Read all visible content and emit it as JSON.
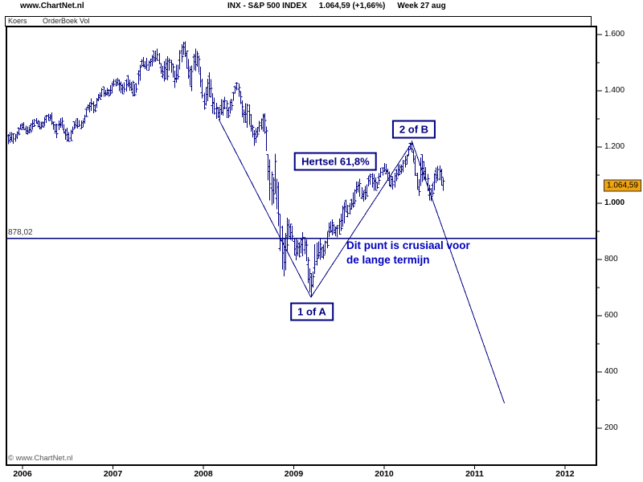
{
  "header": {
    "site": "www.ChartNet.nl",
    "symbol_title": "INX - S&P 500 INDEX",
    "quote": "1.064,59 (+1,66%)",
    "period": "Week  27 aug"
  },
  "toolbar": {
    "tabs": [
      {
        "label": "Koers"
      },
      {
        "label": "OrderBoek Vol"
      }
    ]
  },
  "watermark": "© www.ChartNet.nl",
  "colors": {
    "navy": "#000080",
    "note_blue": "#0000C0",
    "badge_bg": "#F2A40E",
    "badge_border": "#333333",
    "frame": "#000000"
  },
  "chart_data": {
    "type": "bar",
    "subtype": "weekly-hlc-price-bars",
    "title": "INX - S&P 500 INDEX",
    "interval": "Week",
    "xlabel": "",
    "ylabel": "",
    "grid": false,
    "legend": "none",
    "xlim": [
      2005.822,
      2012.347
    ],
    "ylim": [
      69,
      1629
    ],
    "x_ticks": [
      2006,
      2007,
      2008,
      2009,
      2010,
      2011,
      2012
    ],
    "y_ticks_major": [
      200,
      400,
      600,
      800,
      1000,
      1200,
      1400,
      1600
    ],
    "y_ticks_minor": [
      300,
      500,
      700,
      900,
      1100,
      1300,
      1500
    ],
    "bars_start": 2005.84,
    "bars_end": 2010.655,
    "last": {
      "price": 1064.59,
      "price_label": "1.064,59",
      "change_pct": "+1,66%",
      "date_label": "27 aug"
    },
    "hline": {
      "price": 878.02,
      "label": "878,02"
    },
    "monthly_envelope": [
      [
        2005,
        10,
        1168,
        1205
      ],
      [
        2005,
        11,
        1200,
        1268
      ],
      [
        2005,
        12,
        1240,
        1275
      ],
      [
        2006,
        1,
        1248,
        1295
      ],
      [
        2006,
        2,
        1255,
        1297
      ],
      [
        2006,
        3,
        1270,
        1310
      ],
      [
        2006,
        4,
        1280,
        1318
      ],
      [
        2006,
        5,
        1238,
        1326
      ],
      [
        2006,
        6,
        1222,
        1290
      ],
      [
        2006,
        7,
        1225,
        1280
      ],
      [
        2006,
        8,
        1262,
        1305
      ],
      [
        2006,
        9,
        1290,
        1340
      ],
      [
        2006,
        10,
        1327,
        1390
      ],
      [
        2006,
        11,
        1360,
        1407
      ],
      [
        2006,
        12,
        1385,
        1432
      ],
      [
        2007,
        1,
        1403,
        1442
      ],
      [
        2007,
        2,
        1385,
        1461
      ],
      [
        2007,
        3,
        1364,
        1438
      ],
      [
        2007,
        4,
        1424,
        1498
      ],
      [
        2007,
        5,
        1476,
        1532
      ],
      [
        2007,
        6,
        1484,
        1540
      ],
      [
        2007,
        7,
        1454,
        1556
      ],
      [
        2007,
        8,
        1378,
        1504
      ],
      [
        2007,
        9,
        1440,
        1538
      ],
      [
        2007,
        10,
        1489,
        1576
      ],
      [
        2007,
        11,
        1406,
        1552
      ],
      [
        2007,
        12,
        1436,
        1524
      ],
      [
        2008,
        1,
        1272,
        1472
      ],
      [
        2008,
        2,
        1316,
        1396
      ],
      [
        2008,
        3,
        1257,
        1360
      ],
      [
        2008,
        4,
        1324,
        1400
      ],
      [
        2008,
        5,
        1374,
        1432
      ],
      [
        2008,
        6,
        1272,
        1408
      ],
      [
        2008,
        7,
        1200,
        1292
      ],
      [
        2008,
        8,
        1247,
        1313
      ],
      [
        2008,
        9,
        1102,
        1306
      ],
      [
        2008,
        10,
        840,
        1168
      ],
      [
        2008,
        11,
        741,
        1006
      ],
      [
        2008,
        12,
        816,
        918
      ],
      [
        2009,
        1,
        804,
        944
      ],
      [
        2009,
        2,
        735,
        876
      ],
      [
        2009,
        3,
        666,
        832
      ],
      [
        2009,
        4,
        780,
        882
      ],
      [
        2009,
        5,
        850,
        930
      ],
      [
        2009,
        6,
        888,
        956
      ],
      [
        2009,
        7,
        872,
        996
      ],
      [
        2009,
        8,
        972,
        1040
      ],
      [
        2009,
        9,
        992,
        1080
      ],
      [
        2009,
        10,
        1020,
        1101
      ],
      [
        2009,
        11,
        1026,
        1113
      ],
      [
        2009,
        12,
        1082,
        1130
      ],
      [
        2010,
        1,
        1072,
        1150
      ],
      [
        2010,
        2,
        1044,
        1112
      ],
      [
        2010,
        3,
        1116,
        1180
      ],
      [
        2010,
        4,
        1170,
        1220
      ],
      [
        2010,
        5,
        1040,
        1206
      ],
      [
        2010,
        6,
        1010,
        1131
      ],
      [
        2010,
        7,
        1010,
        1121
      ],
      [
        2010,
        8,
        1040,
        1129
      ]
    ],
    "key_points": [
      {
        "t": 2007.79,
        "price": 1576,
        "kind": "high"
      },
      {
        "t": 2008.88,
        "price": 741,
        "kind": "low"
      },
      {
        "t": 2009.19,
        "price": 666,
        "kind": "low"
      },
      {
        "t": 2010.31,
        "price": 1217,
        "kind": "high"
      }
    ],
    "trendlines": [
      {
        "name": "decline-into-1-of-A",
        "from": [
          2008.169,
          1300
        ],
        "to": [
          2009.19,
          666
        ]
      },
      {
        "name": "rally-to-2-of-B",
        "from": [
          2009.19,
          666
        ],
        "to": [
          2010.31,
          1217
        ]
      },
      {
        "name": "projected-decline",
        "from": [
          2010.31,
          1217
        ],
        "to": [
          2011.33,
          289
        ]
      }
    ],
    "annotations": {
      "hertsel": {
        "text": "Hertsel 61,8%",
        "t": 2009.462,
        "price": 1150
      },
      "wave2": {
        "text": "2 of B",
        "t": 2010.329,
        "price": 1264
      },
      "wave1": {
        "text": "1 of A",
        "t": 2009.2,
        "price": 616
      },
      "note": {
        "lines": [
          "Dit punt is crusiaal voor",
          "de lange termijn"
        ],
        "t": 2009.582,
        "price": 877
      }
    }
  }
}
